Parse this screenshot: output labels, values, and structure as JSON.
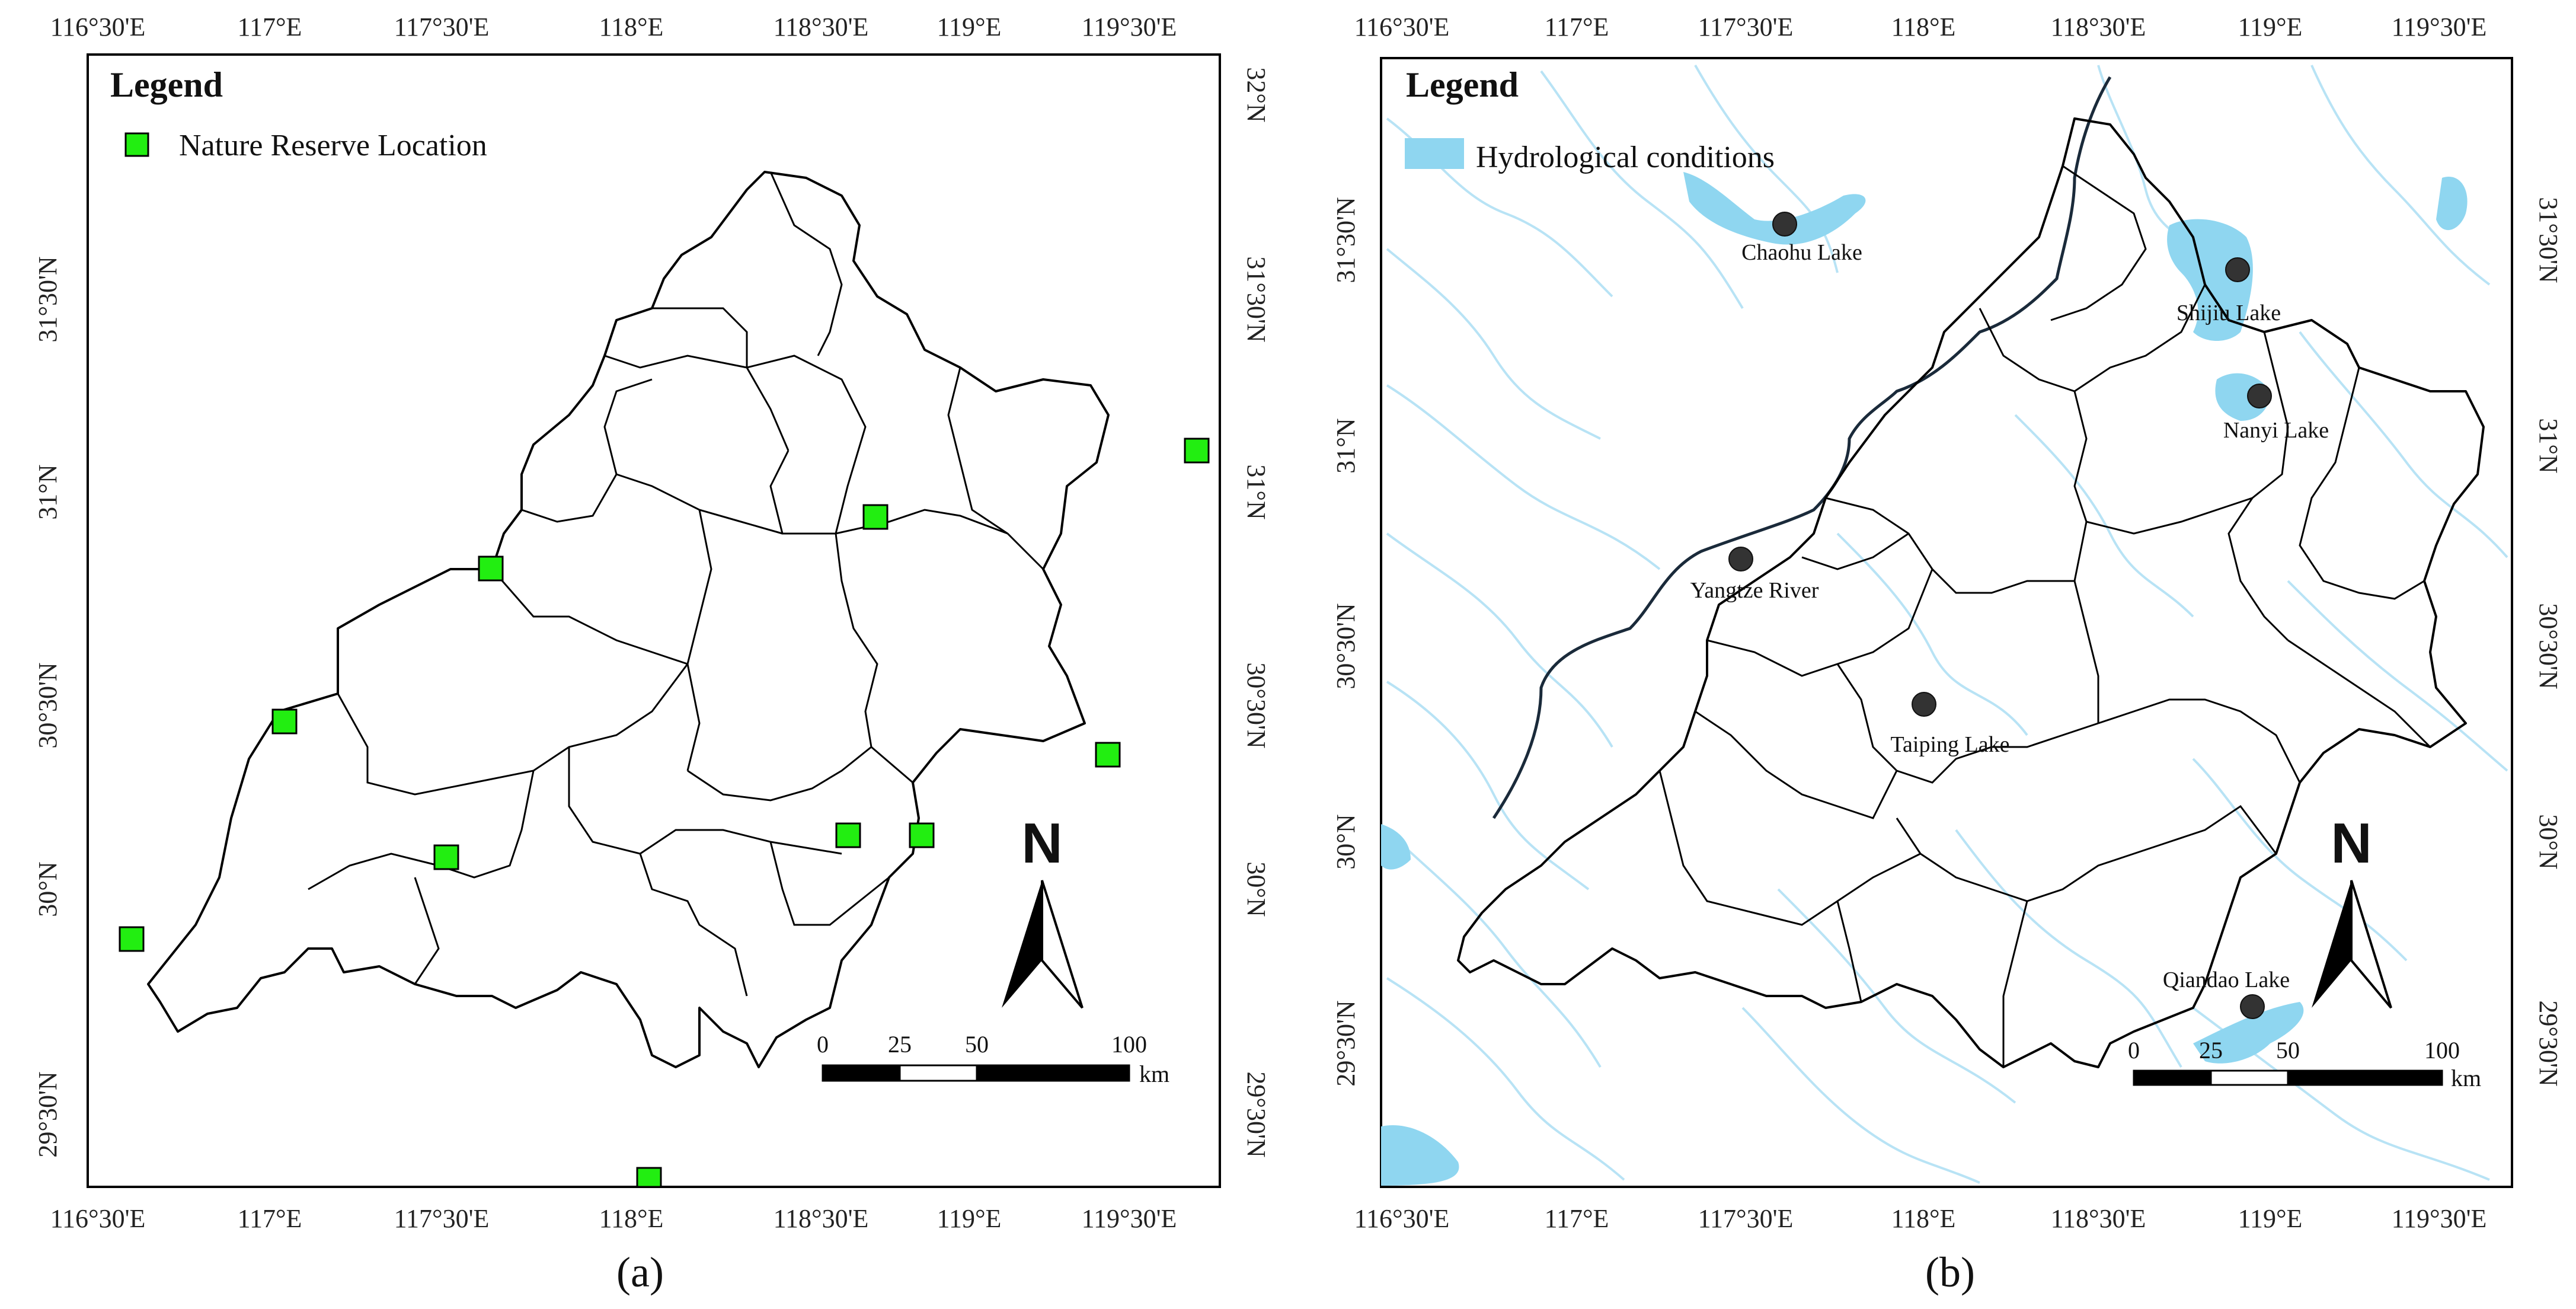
{
  "panel_a": {
    "caption": "(a)",
    "legend": {
      "title": "Legend",
      "item_label": "Nature Reserve Location",
      "item_color": "#22ee11"
    },
    "top_ticks": [
      "116°30'E",
      "117°E",
      "117°30'E",
      "118°E",
      "118°30'E",
      "119°E",
      "119°30'E"
    ],
    "bottom_ticks": [
      "116°30'E",
      "117°E",
      "117°30'E",
      "118°E",
      "118°30'E",
      "119°E",
      "119°30'E"
    ],
    "right_ticks": [
      "32°N",
      "31°30'N",
      "31°N",
      "30°30'N",
      "30°N",
      "29°30'N"
    ],
    "left_ticks": [
      "31°30'N",
      "31°N",
      "30°30'N",
      "30°N",
      "29°30'N"
    ],
    "north_label": "N",
    "scale": {
      "labels": [
        "0",
        "25",
        "50",
        "100"
      ],
      "unit": "km"
    }
  },
  "panel_b": {
    "caption": "(b)",
    "legend": {
      "title": "Legend",
      "item_label": "Hydrological conditions",
      "item_color": "#8fd6f0"
    },
    "top_ticks": [
      "116°30'E",
      "117°E",
      "117°30'E",
      "118°E",
      "118°30'E",
      "119°E",
      "119°30'E"
    ],
    "bottom_ticks": [
      "116°30'E",
      "117°E",
      "117°30'E",
      "118°E",
      "118°30'E",
      "119°E",
      "119°30'E"
    ],
    "right_ticks": [
      "31°30'N",
      "31°N",
      "30°30'N",
      "30°N",
      "29°30'N"
    ],
    "left_ticks": [
      "31°30'N",
      "31°N",
      "30°30'N",
      "30°N",
      "29°30'N"
    ],
    "lakes": {
      "chaohu": "Chaohu Lake",
      "shijiu": "Shijiu Lake",
      "nanyi": "Nanyi Lake",
      "yangtze": "Yangtze River",
      "taiping": "Taiping Lake",
      "qiandao": "Qiandao Lake"
    },
    "north_label": "N",
    "scale": {
      "labels": [
        "0",
        "25",
        "50",
        "100"
      ],
      "unit": "km"
    }
  }
}
